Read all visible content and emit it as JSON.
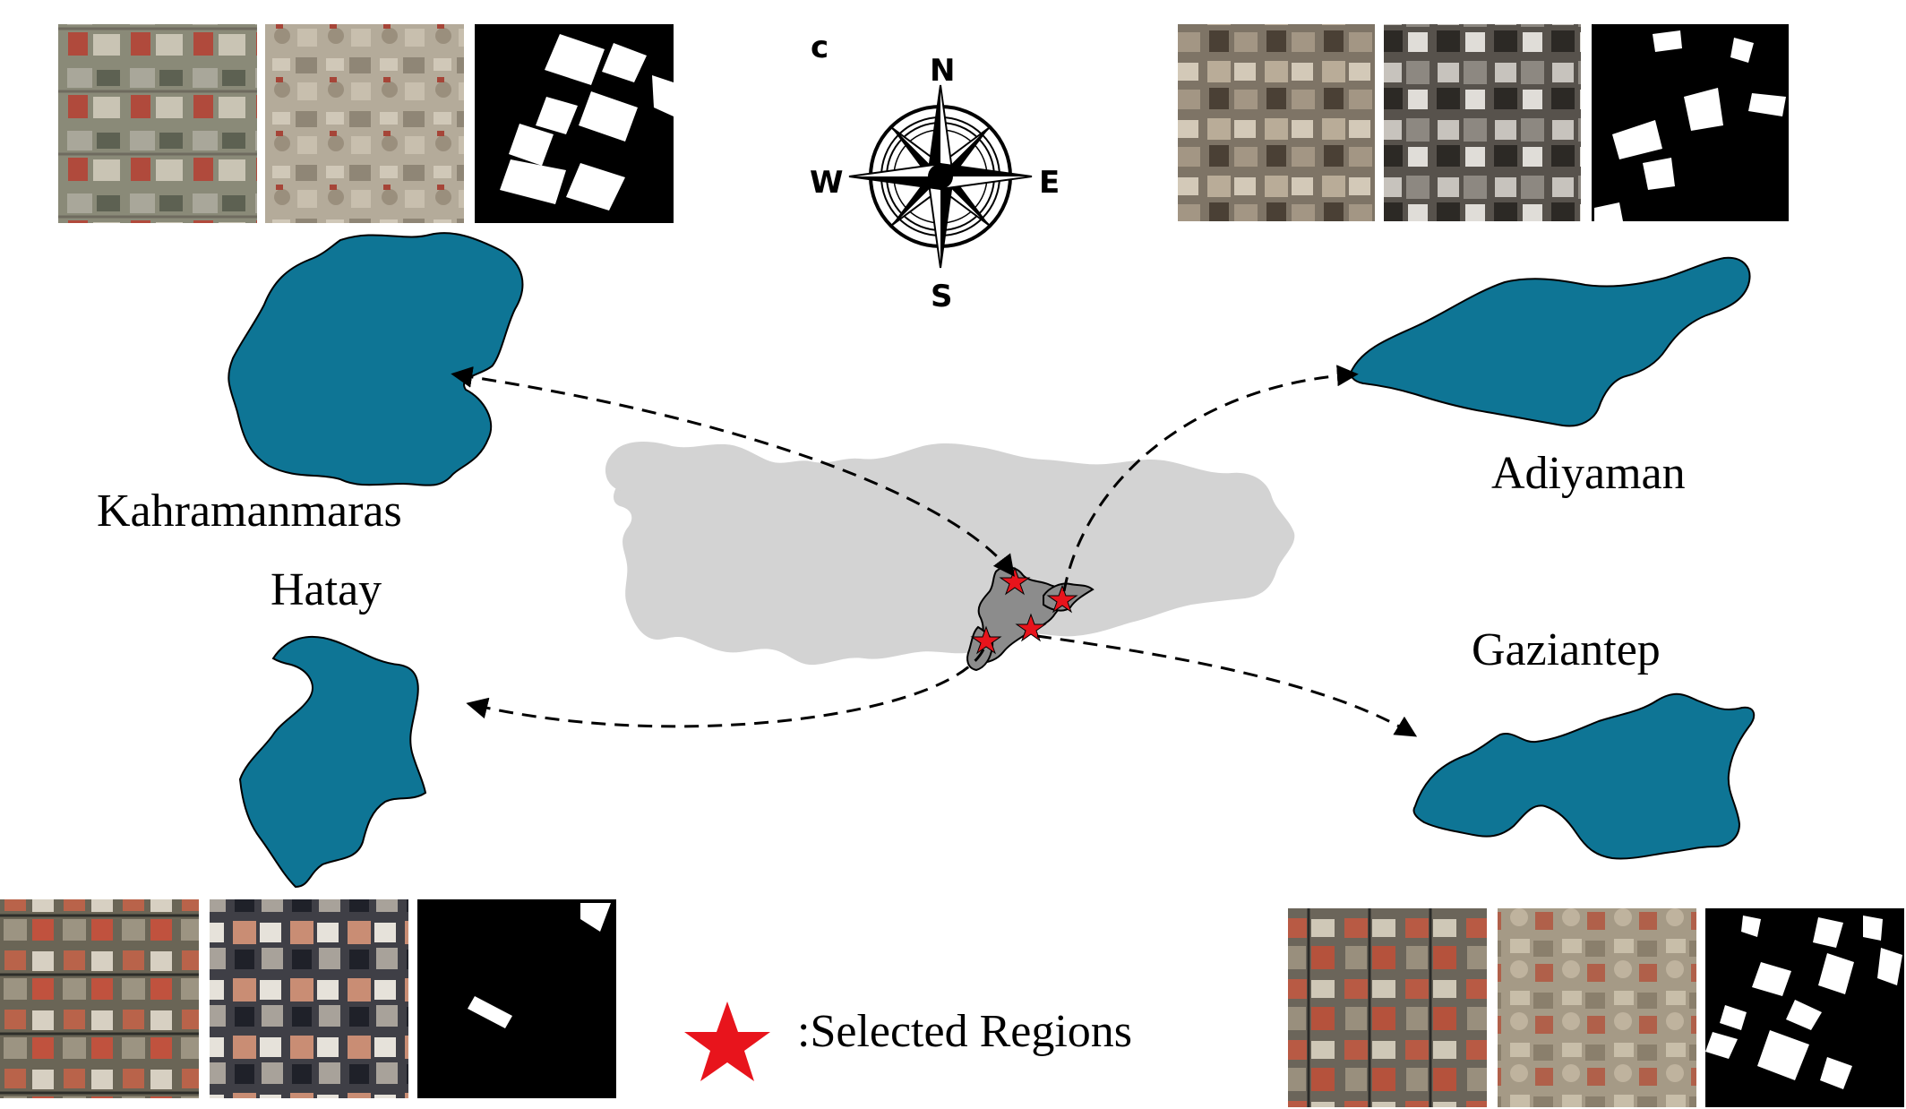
{
  "regions": {
    "kahramanmaras": "Kahramanmaras",
    "hatay": "Hatay",
    "adiyaman": "Adiyaman",
    "gaziantep": "Gaziantep"
  },
  "legend": {
    "text": ":Selected Regions"
  },
  "compass": {
    "n": "N",
    "s": "S",
    "e": "E",
    "w": "W",
    "logo": "c"
  },
  "colors": {
    "province_fill": "#0e7595",
    "turkey_fill": "#d3d3d3",
    "selected_fill": "#8c8c8c",
    "star": "#e8141c"
  }
}
